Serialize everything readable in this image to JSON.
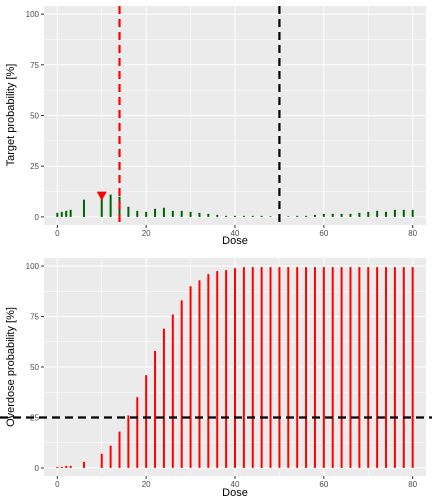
{
  "chart_data": [
    {
      "type": "bar",
      "xlabel": "Dose",
      "ylabel": "Target probability [%]",
      "xlim": [
        -3,
        83
      ],
      "ylim": [
        -4,
        104
      ],
      "x_ticks": [
        0,
        20,
        40,
        60,
        80
      ],
      "y_ticks": [
        0,
        25,
        50,
        75,
        100
      ],
      "grid": true,
      "bar_color": "#006400",
      "x": [
        0,
        1,
        2,
        3,
        6,
        10,
        12,
        14,
        16,
        18,
        20,
        22,
        24,
        26,
        28,
        30,
        32,
        34,
        36,
        38,
        40,
        42,
        44,
        46,
        48,
        50,
        52,
        54,
        56,
        58,
        60,
        62,
        64,
        66,
        68,
        70,
        72,
        74,
        76,
        78,
        80
      ],
      "values": [
        2,
        2.5,
        3,
        3.5,
        8.5,
        11,
        11,
        10,
        5,
        3,
        2.5,
        4,
        4.5,
        3,
        3,
        2.5,
        2,
        1.5,
        1,
        0.5,
        0.5,
        0.5,
        0.5,
        0.5,
        0.3,
        0.3,
        0.3,
        0.5,
        0.5,
        1,
        1.5,
        1.5,
        1.5,
        1.5,
        2,
        2.5,
        3,
        2.5,
        3.5,
        3.5,
        3.5
      ],
      "reference_lines": [
        {
          "x": 14,
          "color": "#ff0000",
          "style": "dashed"
        },
        {
          "x": 50,
          "color": "#000000",
          "style": "dashed"
        }
      ],
      "marker": {
        "x": 10,
        "y": 10,
        "color": "#ff0000",
        "shape": "down-triangle"
      }
    },
    {
      "type": "bar",
      "xlabel": "Dose",
      "ylabel": "Overdose probability [%]",
      "xlim": [
        -3,
        83
      ],
      "ylim": [
        -4,
        104
      ],
      "x_ticks": [
        0,
        20,
        40,
        60,
        80
      ],
      "y_ticks": [
        0,
        25,
        50,
        75,
        100
      ],
      "grid": true,
      "bar_color": "#ff0000",
      "x": [
        0,
        1,
        2,
        3,
        6,
        10,
        12,
        14,
        16,
        18,
        20,
        22,
        24,
        26,
        28,
        30,
        32,
        34,
        36,
        38,
        40,
        42,
        44,
        46,
        48,
        50,
        52,
        54,
        56,
        58,
        60,
        62,
        64,
        66,
        68,
        70,
        72,
        74,
        76,
        78,
        80
      ],
      "values": [
        0.5,
        0.5,
        1,
        1,
        3,
        7,
        11,
        18,
        26,
        35,
        46,
        58,
        69,
        76,
        83,
        90,
        93,
        96,
        97.5,
        98,
        99,
        99.5,
        99.5,
        99.5,
        99.5,
        99.5,
        99.5,
        99.5,
        99.5,
        99.5,
        99.5,
        99.5,
        99.5,
        99.5,
        99.5,
        99.5,
        99.5,
        99.5,
        99.5,
        99.5,
        99.5
      ],
      "reference_lines": [
        {
          "y": 25,
          "color": "#000000",
          "style": "dashed"
        }
      ]
    }
  ]
}
